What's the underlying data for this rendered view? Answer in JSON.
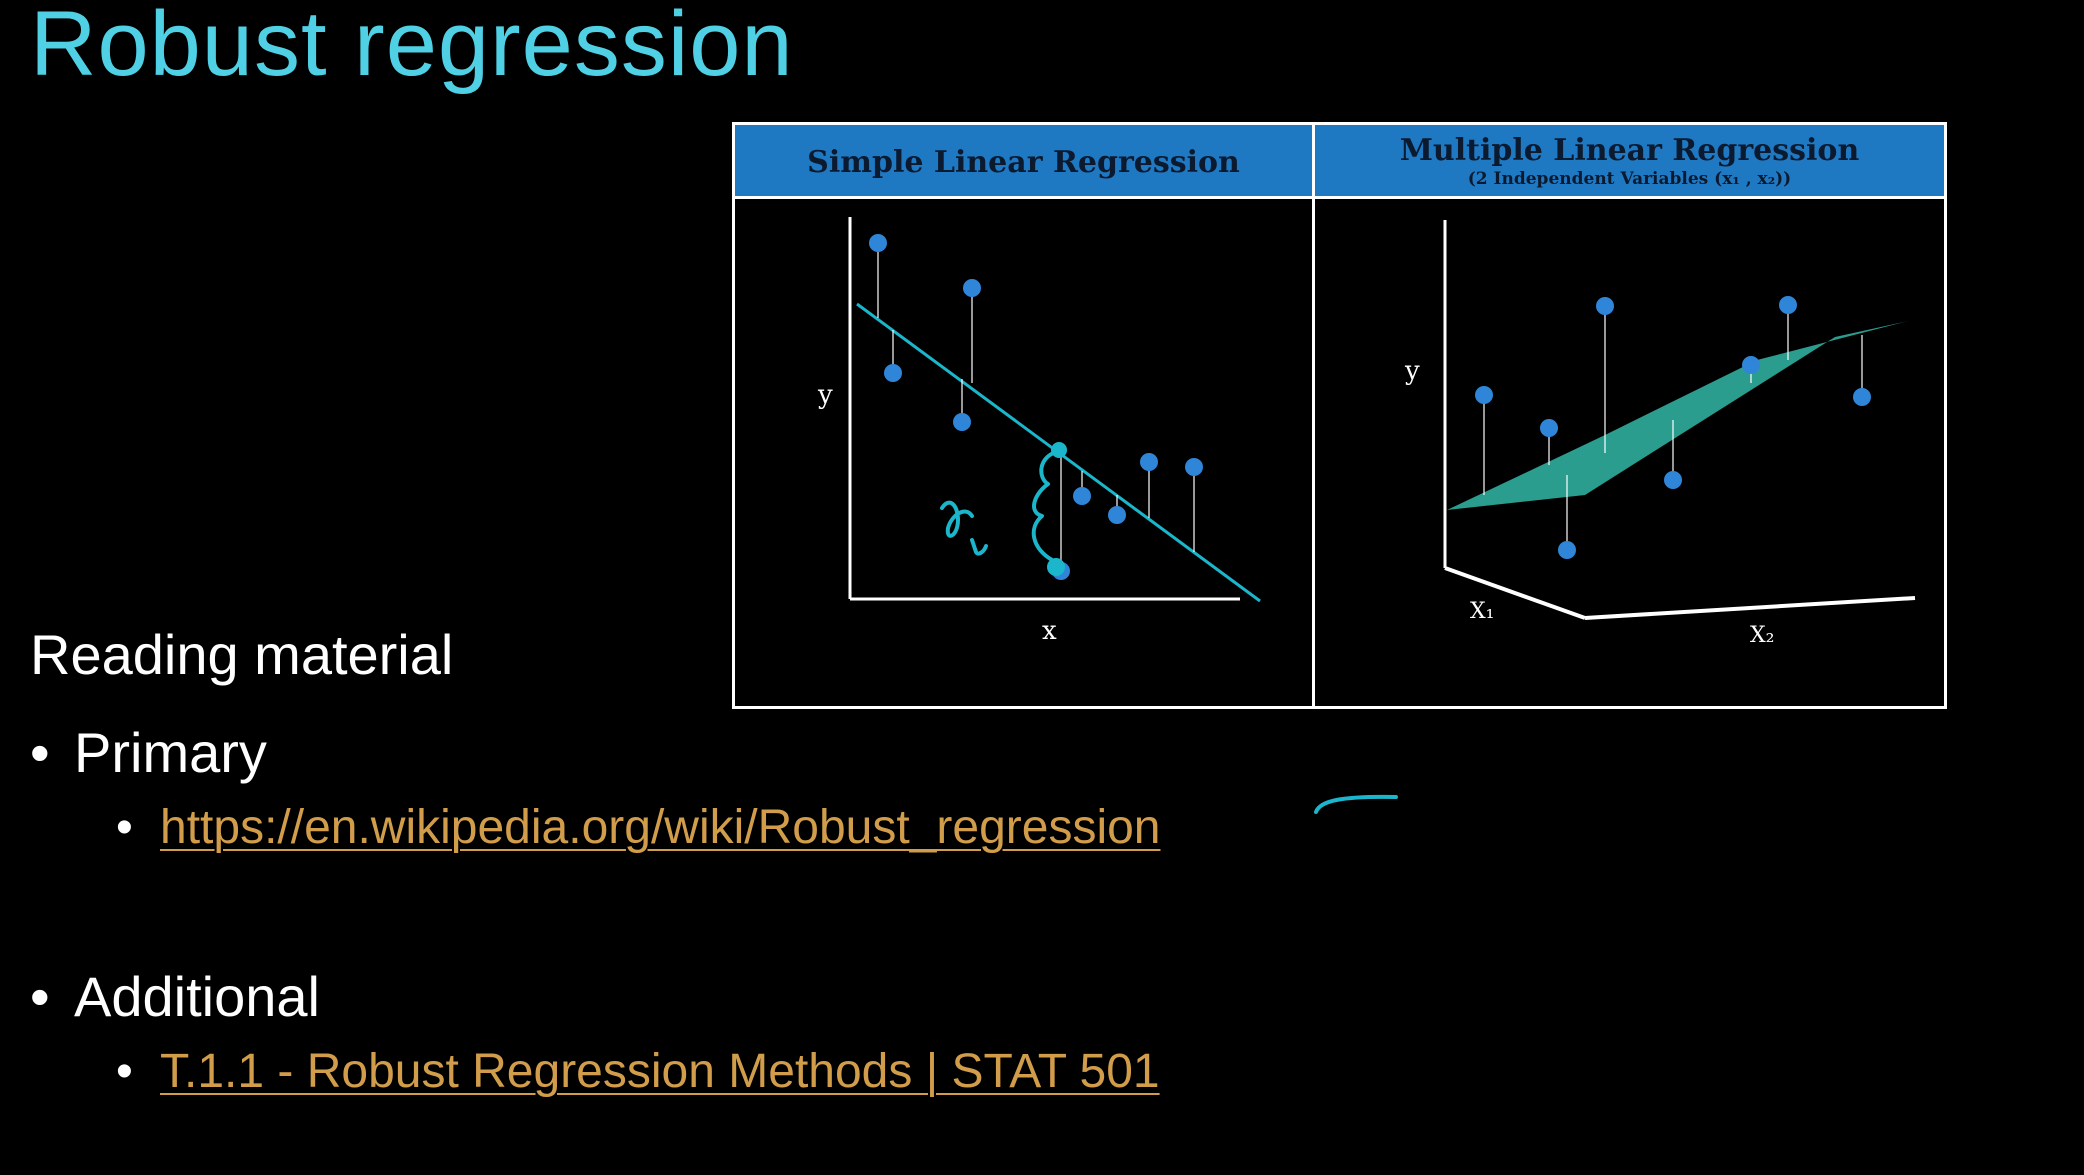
{
  "slide": {
    "title": "Robust regression",
    "reading_heading": "Reading material",
    "primary_label": "Primary",
    "primary_link": "https://en.wikipedia.org/wiki/Robust_regression",
    "additional_label": "Additional",
    "additional_link": "T.1.1 - Robust Regression Methods | STAT 501",
    "title_color": "#4fd0e4",
    "link_color": "#d19d4a"
  },
  "figure": {
    "left_header": "Simple Linear Regression",
    "right_header": "Multiple Linear Regression",
    "right_subheader": "(2 Independent Variables (x₁ , x₂))",
    "left_ylabel": "y",
    "left_xlabel": "x",
    "right_ylabel": "y",
    "right_x1label": "X₁",
    "right_x2label": "X₂",
    "annotation_text": "rᵢ",
    "point_color": "#2f86d8",
    "line_color": "#1bb6cc",
    "plane_color": "#2a9d8f"
  }
}
